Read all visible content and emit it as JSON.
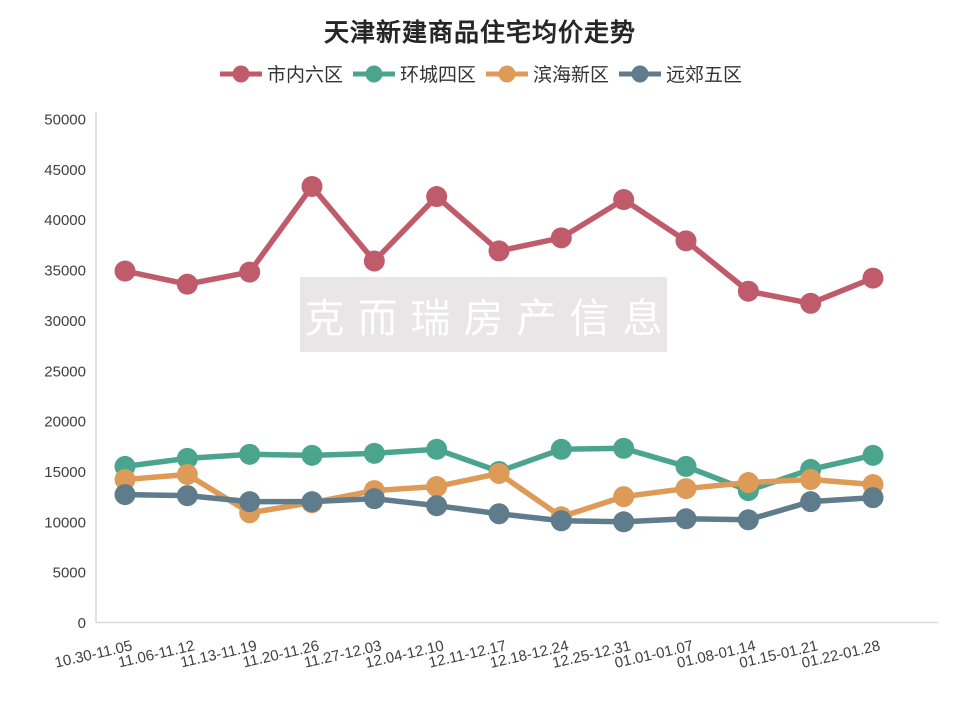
{
  "chart_data": {
    "type": "line",
    "title": "天津新建商品住宅均价走势",
    "legend_position": "top",
    "grid": false,
    "ylim": [
      0,
      50000
    ],
    "y_ticks": [
      0,
      5000,
      10000,
      15000,
      20000,
      25000,
      30000,
      35000,
      40000,
      45000,
      50000
    ],
    "categories": [
      "10.30-11.05",
      "11.06-11.12",
      "11.13-11.19",
      "11.20-11.26",
      "11.27-12.03",
      "12.04-12.10",
      "12.11-12.17",
      "12.18-12.24",
      "12.25-12.31",
      "01.01-01.07",
      "01.08-01.14",
      "01.15-01.21",
      "01.22-01.28"
    ],
    "series": [
      {
        "name": "市内六区",
        "color": "#c05b6b",
        "values": [
          34900,
          33600,
          34800,
          43300,
          35900,
          42300,
          36900,
          38200,
          42000,
          37900,
          32900,
          31700,
          34200
        ]
      },
      {
        "name": "环城四区",
        "color": "#4ba58e",
        "values": [
          15500,
          16300,
          16700,
          16600,
          16800,
          17200,
          15000,
          17200,
          17300,
          15500,
          13100,
          15200,
          16600
        ]
      },
      {
        "name": "滨海新区",
        "color": "#dd9b57",
        "values": [
          14200,
          14700,
          10900,
          11900,
          13100,
          13500,
          14800,
          10500,
          12500,
          13300,
          13900,
          14200,
          13700
        ]
      },
      {
        "name": "远郊五区",
        "color": "#5e7c8b",
        "values": [
          12700,
          12600,
          12000,
          12000,
          12300,
          11600,
          10800,
          10100,
          10000,
          10300,
          10200,
          12000,
          12400
        ]
      }
    ]
  },
  "watermark": {
    "text": "克而瑞房产信息"
  },
  "axis_color": "#d9d9d9"
}
